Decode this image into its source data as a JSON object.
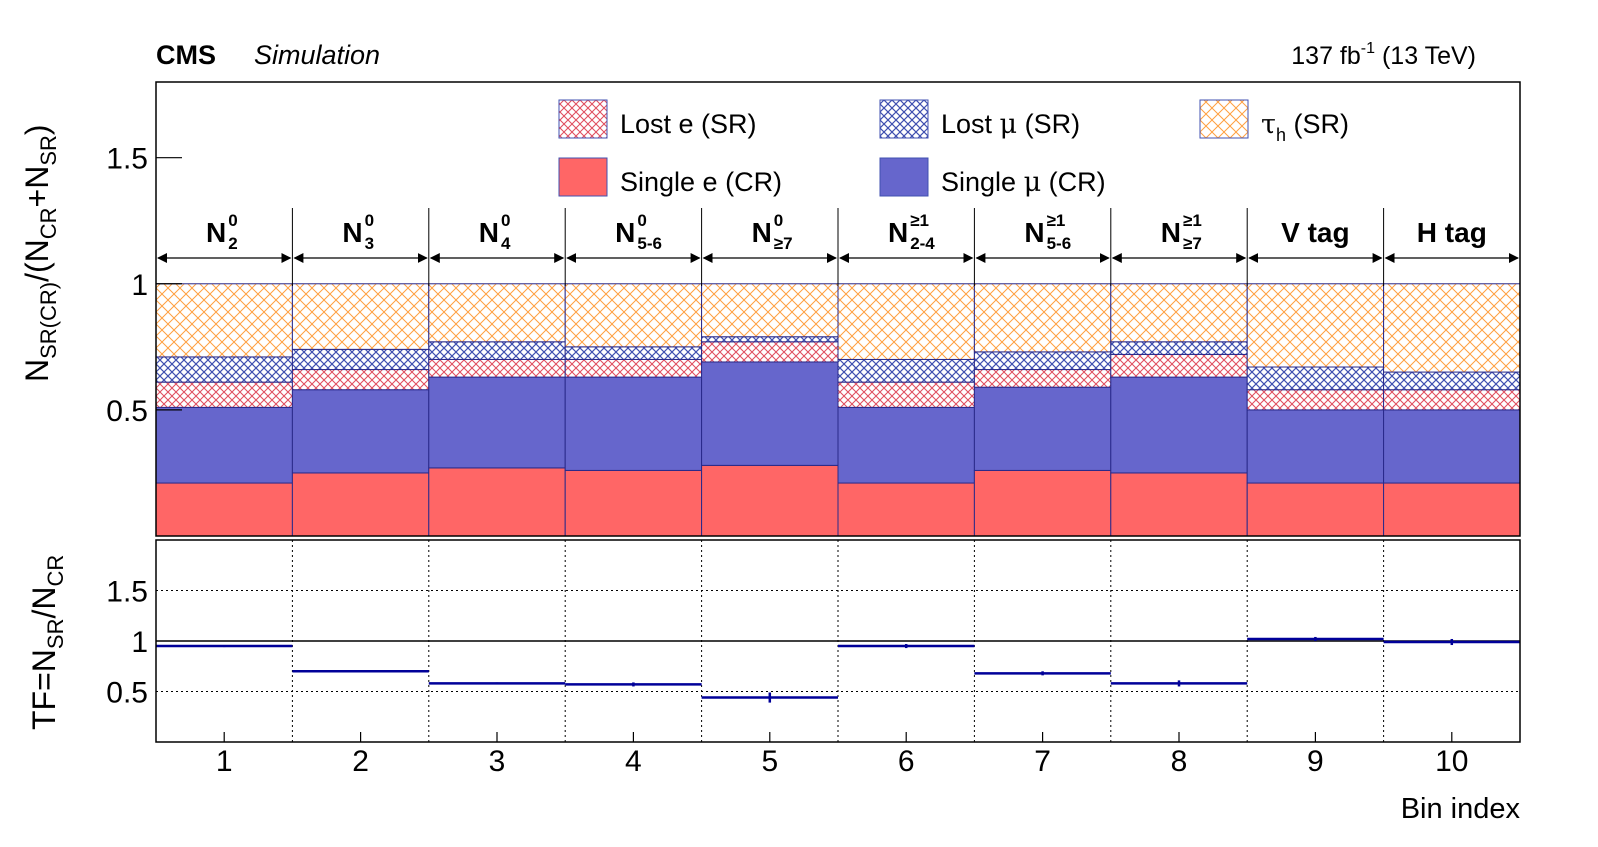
{
  "header": {
    "experiment": "CMS",
    "label": "Simulation",
    "lumi_prefix": "137 fb",
    "lumi_sup": "-1",
    "lumi_suffix": " (13 TeV)"
  },
  "colors": {
    "single_e": "#ff6666",
    "single_mu": "#6666cc",
    "lost_e": "#e05060",
    "lost_mu": "#4050b0",
    "tau_h": "#ffa040",
    "tf_line": "#000099",
    "frame": "#000000"
  },
  "legend": {
    "lost_e": "Lost e (SR)",
    "lost_mu_pre": "Lost ",
    "lost_mu_sym": "μ",
    "lost_mu_post": " (SR)",
    "tau_sym": "τ",
    "tau_sub": "h",
    "tau_post": " (SR)",
    "single_e": "Single e (CR)",
    "single_mu_pre": "Single ",
    "single_mu_sym": "μ",
    "single_mu_post": " (CR)"
  },
  "segments": [
    {
      "main": "N",
      "sup": "0",
      "sub": "2"
    },
    {
      "main": "N",
      "sup": "0",
      "sub": "3"
    },
    {
      "main": "N",
      "sup": "0",
      "sub": "4"
    },
    {
      "main": "N",
      "sup": "0",
      "sub": "5-6"
    },
    {
      "main": "N",
      "sup": "0",
      "sub": "≥7"
    },
    {
      "main": "N",
      "sup": "≥1",
      "sub": "2-4"
    },
    {
      "main": "N",
      "sup": "≥1",
      "sub": "5-6"
    },
    {
      "main": "N",
      "sup": "≥1",
      "sub": "≥7"
    },
    {
      "main": "V tag",
      "sup": "",
      "sub": ""
    },
    {
      "main": "H tag",
      "sup": "",
      "sub": ""
    }
  ],
  "top_panel": {
    "ylabel": {
      "n": "N",
      "s1": "SR(CR)",
      "m1": "/(N",
      "s2": "CR",
      "m2": "+N",
      "s3": "SR",
      "m3": ")"
    },
    "yticks": [
      "0.5",
      "1",
      "1.5"
    ]
  },
  "bottom_panel": {
    "ylabel": {
      "pre": "TF=N",
      "s1": "SR",
      "m1": "/N",
      "s2": "CR"
    },
    "yticks": [
      "0.5",
      "1",
      "1.5"
    ]
  },
  "chart_data": [
    {
      "type": "bar",
      "stacked": true,
      "x": [
        1,
        2,
        3,
        4,
        5,
        6,
        7,
        8,
        9,
        10
      ],
      "ylim": [
        0.0,
        1.8
      ],
      "series": [
        {
          "name": "Single e (CR)",
          "values": [
            0.21,
            0.25,
            0.27,
            0.26,
            0.28,
            0.21,
            0.26,
            0.25,
            0.21,
            0.21
          ]
        },
        {
          "name": "Single μ (CR)",
          "values": [
            0.3,
            0.33,
            0.36,
            0.37,
            0.41,
            0.3,
            0.33,
            0.38,
            0.29,
            0.29
          ]
        },
        {
          "name": "Lost e (SR)",
          "values": [
            0.1,
            0.08,
            0.07,
            0.07,
            0.08,
            0.1,
            0.07,
            0.09,
            0.08,
            0.08
          ]
        },
        {
          "name": "Lost μ (SR)",
          "values": [
            0.1,
            0.08,
            0.07,
            0.05,
            0.02,
            0.09,
            0.07,
            0.05,
            0.09,
            0.07
          ]
        },
        {
          "name": "τh (SR)",
          "values": [
            0.29,
            0.26,
            0.23,
            0.25,
            0.21,
            0.3,
            0.27,
            0.23,
            0.33,
            0.35
          ]
        }
      ]
    },
    {
      "type": "scatter",
      "x": [
        1,
        2,
        3,
        4,
        5,
        6,
        7,
        8,
        9,
        10
      ],
      "values": [
        0.95,
        0.7,
        0.58,
        0.57,
        0.44,
        0.95,
        0.68,
        0.58,
        1.02,
        0.99
      ],
      "errors": [
        0.01,
        0.01,
        0.01,
        0.02,
        0.05,
        0.02,
        0.02,
        0.03,
        0.02,
        0.03
      ],
      "ylabel": "TF=NSR/NCR",
      "xlabel": "Bin index",
      "ylim": [
        0.0,
        2.0
      ],
      "reference_line": 1.0
    }
  ]
}
